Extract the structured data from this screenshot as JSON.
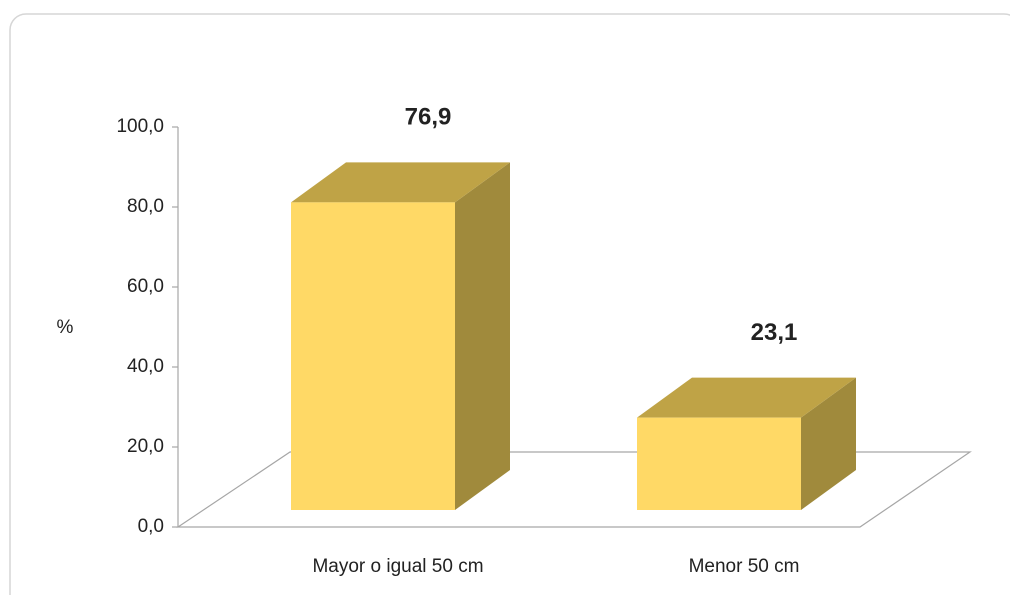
{
  "chart_data": {
    "type": "bar",
    "y_label": "%",
    "categories": [
      "Mayor o igual 50 cm",
      "Menor 50 cm"
    ],
    "values": [
      76.9,
      23.1
    ],
    "value_labels": [
      "76,9",
      "23,1"
    ],
    "color": "#FFD966",
    "ylim": [
      0,
      100
    ],
    "yticks": [
      {
        "value": 0,
        "label": "0,0"
      },
      {
        "value": 20,
        "label": "20,0"
      },
      {
        "value": 40,
        "label": "40,0"
      },
      {
        "value": 60,
        "label": "60,0"
      },
      {
        "value": 80,
        "label": "80,0"
      },
      {
        "value": 100,
        "label": "100,0"
      }
    ]
  }
}
